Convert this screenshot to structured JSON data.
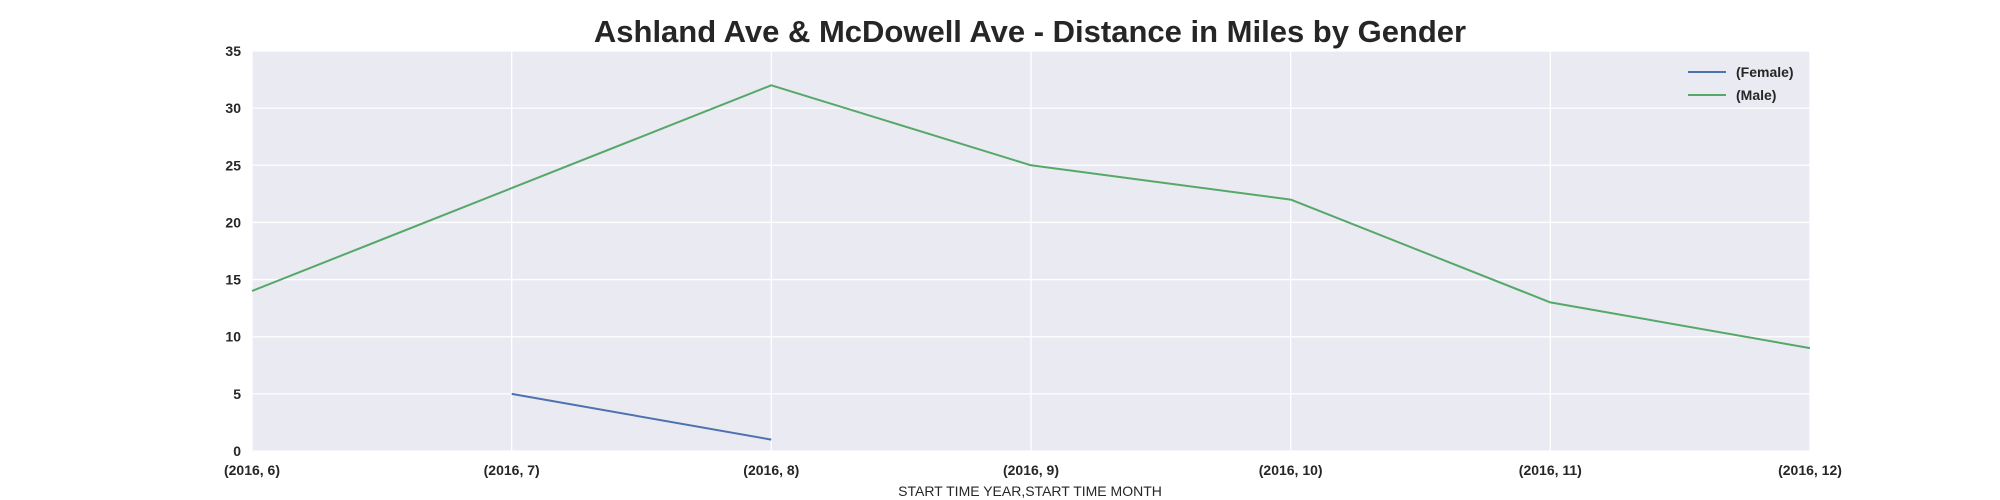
{
  "chart_data": {
    "type": "line",
    "title": "Ashland Ave & McDowell Ave - Distance in Miles by Gender",
    "xlabel": "START TIME YEAR,START TIME MONTH",
    "ylabel": "",
    "categories": [
      "(2016, 6)",
      "(2016, 7)",
      "(2016, 8)",
      "(2016, 9)",
      "(2016, 10)",
      "(2016, 11)",
      "(2016, 12)"
    ],
    "yticks": [
      "0",
      "5",
      "10",
      "15",
      "20",
      "25",
      "30",
      "35"
    ],
    "ylim": [
      0,
      35
    ],
    "grid": true,
    "legend_position": "top-right",
    "series": [
      {
        "name": "(Female)",
        "color": "#4c72b0",
        "values": [
          null,
          5,
          1,
          null,
          null,
          null,
          null
        ]
      },
      {
        "name": "(Male)",
        "color": "#55a868",
        "values": [
          14,
          23,
          32,
          25,
          22,
          13,
          9
        ]
      }
    ]
  }
}
